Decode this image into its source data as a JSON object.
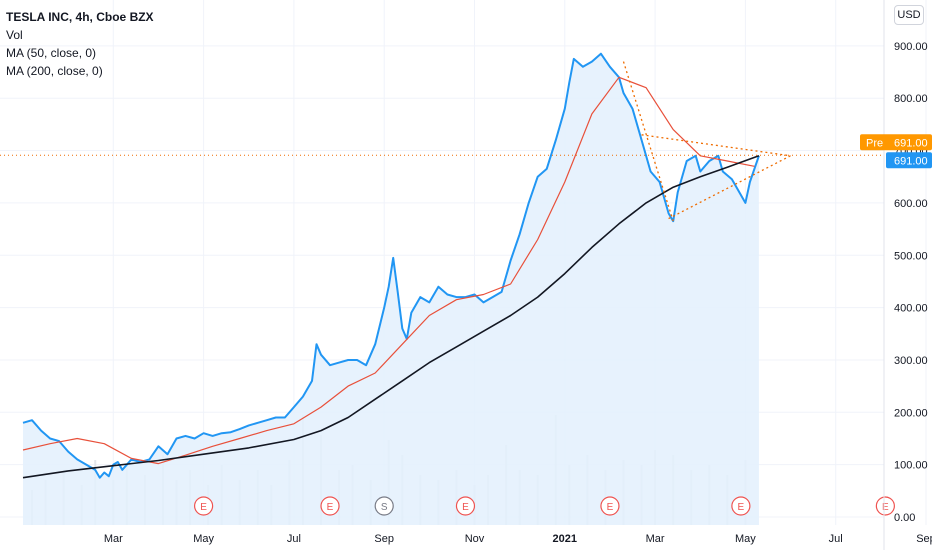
{
  "header": {
    "symbol": "TESLA INC, 4h, Cboe BZX",
    "indicators": [
      "Vol",
      "MA (50, close, 0)",
      "MA (200, close, 0)"
    ],
    "currency_button": "USD"
  },
  "price_labels": {
    "pre_tag": "Pre",
    "pre_value": "691.00",
    "last_value": "691.00"
  },
  "colors": {
    "price_line": "#2196f3",
    "area_fill": "#e3f0fd",
    "ma50": "#e8503a",
    "ma200": "#131722",
    "pattern": "#ef6c00",
    "pre_tag_bg": "#ff9800",
    "last_tag_bg": "#2196f3",
    "volume": "#e4e6ea",
    "event_e": "#ef5350",
    "event_s": "#787b86"
  },
  "chart_data": {
    "type": "line",
    "title": "TESLA INC, 4h, Cboe BZX",
    "ylabel": "USD",
    "ylim": [
      0,
      960
    ],
    "y_ticks": [
      {
        "value": 0,
        "label": "0.00"
      },
      {
        "value": 100,
        "label": "100.00"
      },
      {
        "value": 200,
        "label": "200.00"
      },
      {
        "value": 300,
        "label": "300.00"
      },
      {
        "value": 400,
        "label": "400.00"
      },
      {
        "value": 500,
        "label": "500.00"
      },
      {
        "value": 600,
        "label": "600.00"
      },
      {
        "value": 700,
        "label": "700.00"
      },
      {
        "value": 800,
        "label": "800.00"
      },
      {
        "value": 900,
        "label": "900.00"
      }
    ],
    "x_ticks": [
      {
        "t": 2,
        "label": "Mar",
        "bold": false
      },
      {
        "t": 4,
        "label": "May",
        "bold": false
      },
      {
        "t": 6,
        "label": "Jul",
        "bold": false
      },
      {
        "t": 8,
        "label": "Sep",
        "bold": false
      },
      {
        "t": 10,
        "label": "Nov",
        "bold": false
      },
      {
        "t": 12,
        "label": "2021",
        "bold": true
      },
      {
        "t": 14,
        "label": "Mar",
        "bold": false
      },
      {
        "t": 16,
        "label": "May",
        "bold": false
      },
      {
        "t": 18,
        "label": "Jul",
        "bold": false
      },
      {
        "t": 20,
        "label": "Sep",
        "bold": false
      }
    ],
    "series": [
      {
        "name": "",
        "role": "price",
        "points": [
          [
            0.0,
            180
          ],
          [
            0.2,
            185
          ],
          [
            0.4,
            165
          ],
          [
            0.6,
            150
          ],
          [
            0.8,
            145
          ],
          [
            1.0,
            125
          ],
          [
            1.2,
            110
          ],
          [
            1.4,
            100
          ],
          [
            1.6,
            90
          ],
          [
            1.7,
            75
          ],
          [
            1.8,
            85
          ],
          [
            1.9,
            78
          ],
          [
            2.0,
            100
          ],
          [
            2.1,
            105
          ],
          [
            2.2,
            90
          ],
          [
            2.4,
            110
          ],
          [
            2.6,
            105
          ],
          [
            2.8,
            110
          ],
          [
            3.0,
            135
          ],
          [
            3.2,
            120
          ],
          [
            3.4,
            150
          ],
          [
            3.6,
            155
          ],
          [
            3.8,
            150
          ],
          [
            4.0,
            160
          ],
          [
            4.2,
            155
          ],
          [
            4.4,
            160
          ],
          [
            4.6,
            162
          ],
          [
            4.8,
            168
          ],
          [
            5.0,
            175
          ],
          [
            5.2,
            180
          ],
          [
            5.4,
            185
          ],
          [
            5.6,
            190
          ],
          [
            5.8,
            190
          ],
          [
            6.0,
            210
          ],
          [
            6.2,
            230
          ],
          [
            6.4,
            260
          ],
          [
            6.5,
            330
          ],
          [
            6.6,
            310
          ],
          [
            6.8,
            290
          ],
          [
            7.0,
            295
          ],
          [
            7.2,
            300
          ],
          [
            7.4,
            300
          ],
          [
            7.6,
            290
          ],
          [
            7.8,
            330
          ],
          [
            8.0,
            400
          ],
          [
            8.1,
            440
          ],
          [
            8.2,
            495
          ],
          [
            8.3,
            430
          ],
          [
            8.4,
            360
          ],
          [
            8.5,
            340
          ],
          [
            8.6,
            390
          ],
          [
            8.8,
            420
          ],
          [
            9.0,
            410
          ],
          [
            9.2,
            440
          ],
          [
            9.4,
            425
          ],
          [
            9.6,
            420
          ],
          [
            9.8,
            420
          ],
          [
            10.0,
            425
          ],
          [
            10.2,
            410
          ],
          [
            10.4,
            420
          ],
          [
            10.6,
            430
          ],
          [
            10.8,
            490
          ],
          [
            11.0,
            540
          ],
          [
            11.2,
            600
          ],
          [
            11.4,
            650
          ],
          [
            11.6,
            665
          ],
          [
            11.8,
            720
          ],
          [
            12.0,
            780
          ],
          [
            12.1,
            830
          ],
          [
            12.2,
            875
          ],
          [
            12.4,
            860
          ],
          [
            12.6,
            870
          ],
          [
            12.8,
            885
          ],
          [
            13.0,
            860
          ],
          [
            13.2,
            840
          ],
          [
            13.3,
            810
          ],
          [
            13.5,
            780
          ],
          [
            13.7,
            720
          ],
          [
            13.9,
            660
          ],
          [
            14.1,
            640
          ],
          [
            14.3,
            580
          ],
          [
            14.4,
            565
          ],
          [
            14.5,
            620
          ],
          [
            14.7,
            680
          ],
          [
            14.9,
            690
          ],
          [
            15.0,
            660
          ],
          [
            15.2,
            680
          ],
          [
            15.4,
            690
          ],
          [
            15.5,
            660
          ],
          [
            15.7,
            645
          ],
          [
            15.9,
            615
          ],
          [
            16.0,
            600
          ],
          [
            16.1,
            640
          ],
          [
            16.3,
            690
          ]
        ]
      },
      {
        "name": "MA (50, close, 0)",
        "role": "ma50",
        "points": [
          [
            0.0,
            128
          ],
          [
            0.6,
            140
          ],
          [
            1.2,
            150
          ],
          [
            1.8,
            140
          ],
          [
            2.4,
            112
          ],
          [
            3.0,
            102
          ],
          [
            3.6,
            118
          ],
          [
            4.2,
            135
          ],
          [
            4.8,
            150
          ],
          [
            5.4,
            165
          ],
          [
            6.0,
            178
          ],
          [
            6.6,
            210
          ],
          [
            7.2,
            250
          ],
          [
            7.8,
            275
          ],
          [
            8.4,
            330
          ],
          [
            9.0,
            385
          ],
          [
            9.6,
            415
          ],
          [
            10.2,
            425
          ],
          [
            10.8,
            445
          ],
          [
            11.4,
            530
          ],
          [
            12.0,
            640
          ],
          [
            12.6,
            770
          ],
          [
            13.2,
            840
          ],
          [
            13.8,
            820
          ],
          [
            14.4,
            740
          ],
          [
            15.0,
            690
          ],
          [
            15.6,
            680
          ],
          [
            16.2,
            670
          ]
        ]
      },
      {
        "name": "MA (200, close, 0)",
        "role": "ma200",
        "points": [
          [
            0.0,
            75
          ],
          [
            1.0,
            88
          ],
          [
            2.0,
            98
          ],
          [
            3.0,
            108
          ],
          [
            4.0,
            120
          ],
          [
            5.0,
            132
          ],
          [
            6.0,
            148
          ],
          [
            6.6,
            165
          ],
          [
            7.2,
            190
          ],
          [
            7.8,
            225
          ],
          [
            8.4,
            260
          ],
          [
            9.0,
            295
          ],
          [
            9.6,
            325
          ],
          [
            10.2,
            355
          ],
          [
            10.8,
            385
          ],
          [
            11.4,
            420
          ],
          [
            12.0,
            465
          ],
          [
            12.6,
            515
          ],
          [
            13.2,
            560
          ],
          [
            13.8,
            600
          ],
          [
            14.4,
            630
          ],
          [
            15.0,
            650
          ],
          [
            15.6,
            668
          ],
          [
            16.3,
            690
          ]
        ]
      }
    ],
    "pattern_lines": [
      {
        "points": [
          [
            13.3,
            870
          ],
          [
            14.4,
            565
          ]
        ]
      },
      {
        "points": [
          [
            13.7,
            730
          ],
          [
            17.0,
            690
          ]
        ]
      },
      {
        "points": [
          [
            14.3,
            570
          ],
          [
            17.0,
            690
          ]
        ]
      }
    ],
    "volume": [
      [
        0.2,
        35
      ],
      [
        0.5,
        45
      ],
      [
        0.9,
        55
      ],
      [
        1.3,
        40
      ],
      [
        1.6,
        65
      ],
      [
        2.0,
        45
      ],
      [
        2.3,
        60
      ],
      [
        2.7,
        50
      ],
      [
        3.1,
        70
      ],
      [
        3.4,
        45
      ],
      [
        3.7,
        55
      ],
      [
        4.1,
        40
      ],
      [
        4.4,
        60
      ],
      [
        4.8,
        45
      ],
      [
        5.2,
        55
      ],
      [
        5.5,
        40
      ],
      [
        5.9,
        65
      ],
      [
        6.2,
        110
      ],
      [
        6.6,
        90
      ],
      [
        7.0,
        55
      ],
      [
        7.3,
        60
      ],
      [
        7.7,
        45
      ],
      [
        8.1,
        85
      ],
      [
        8.4,
        70
      ],
      [
        8.8,
        50
      ],
      [
        9.2,
        45
      ],
      [
        9.6,
        55
      ],
      [
        10.0,
        40
      ],
      [
        10.3,
        50
      ],
      [
        10.7,
        80
      ],
      [
        11.0,
        55
      ],
      [
        11.4,
        50
      ],
      [
        11.8,
        110
      ],
      [
        12.1,
        60
      ],
      [
        12.5,
        70
      ],
      [
        12.9,
        55
      ],
      [
        13.3,
        65
      ],
      [
        13.7,
        60
      ],
      [
        14.0,
        75
      ],
      [
        14.4,
        70
      ],
      [
        14.8,
        55
      ],
      [
        15.2,
        60
      ],
      [
        15.6,
        50
      ],
      [
        16.0,
        65
      ]
    ],
    "events": [
      {
        "t": 4.0,
        "label": "E",
        "kind": "earnings"
      },
      {
        "t": 6.8,
        "label": "E",
        "kind": "earnings"
      },
      {
        "t": 8.0,
        "label": "S",
        "kind": "split"
      },
      {
        "t": 9.8,
        "label": "E",
        "kind": "earnings"
      },
      {
        "t": 13.0,
        "label": "E",
        "kind": "earnings"
      },
      {
        "t": 15.9,
        "label": "E",
        "kind": "earnings"
      },
      {
        "t": 19.1,
        "label": "E",
        "kind": "earnings"
      }
    ],
    "current_price": 691.0
  }
}
